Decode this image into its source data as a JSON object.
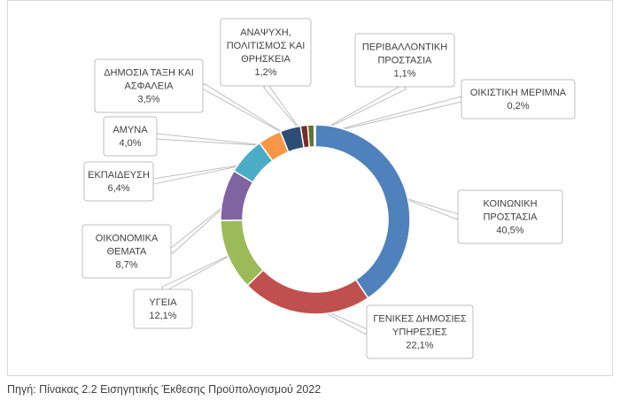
{
  "chart_data": {
    "type": "doughnut",
    "title": "",
    "legend": "none",
    "slices": [
      {
        "name": "ΚΟΙΝΩΝΙΚΗ ΠΡΟΣΤΑΣΙΑ",
        "lines": [
          "ΚΟΙΝΩΝΙΚΗ",
          "ΠΡΟΣΤΑΣΙΑ"
        ],
        "value": 40.5,
        "label": "40,5%",
        "color": "#4F81BD"
      },
      {
        "name": "ΓΕΝΙΚΕΣ ΔΗΜΟΣΙΕΣ ΥΠΗΡΕΣΙΕΣ",
        "lines": [
          "ΓΕΝΙΚΕΣ ΔΗΜΟΣΙΕΣ",
          "ΥΠΗΡΕΣΙΕΣ"
        ],
        "value": 22.1,
        "label": "22,1%",
        "color": "#C0504D"
      },
      {
        "name": "ΥΓΕΙΑ",
        "lines": [
          "ΥΓΕΙΑ"
        ],
        "value": 12.1,
        "label": "12,1%",
        "color": "#9BBB59"
      },
      {
        "name": "ΟΙΚΟΝΟΜΙΚΑ ΘΕΜΑΤΑ",
        "lines": [
          "ΟΙΚΟΝΟΜΙΚΑ",
          "ΘΕΜΑΤΑ"
        ],
        "value": 8.7,
        "label": "8,7%",
        "color": "#8064A2"
      },
      {
        "name": "ΕΚΠΑΙΔΕΥΣΗ",
        "lines": [
          "ΕΚΠΑΙΔΕΥΣΗ"
        ],
        "value": 6.4,
        "label": "6,4%",
        "color": "#4BACC6"
      },
      {
        "name": "ΑΜΥΝΑ",
        "lines": [
          "ΑΜΥΝΑ"
        ],
        "value": 4.0,
        "label": "4,0%",
        "color": "#F79646"
      },
      {
        "name": "ΔΗΜΟΣΙΑ ΤΑΞΗ ΚΑΙ ΑΣΦΑΛΕΙΑ",
        "lines": [
          "ΔΗΜΟΣΙΑ ΤΑΞΗ ΚΑΙ",
          "ΑΣΦΑΛΕΙΑ"
        ],
        "value": 3.5,
        "label": "3,5%",
        "color": "#2C4D75"
      },
      {
        "name": "ΑΝΑΨΥΧΗ, ΠΟΛΙΤΙΣΜΟΣ ΚΑΙ ΘΡΗΣΚΕΙΑ",
        "lines": [
          "ΑΝΑΨΥΧΗ,",
          "ΠΟΛΙΤΙΣΜΟΣ ΚΑΙ",
          "ΘΡΗΣΚΕΙΑ"
        ],
        "value": 1.2,
        "label": "1,2%",
        "color": "#772C2A"
      },
      {
        "name": "ΠΕΡΙΒΑΛΛΟΝΤΙΚΗ ΠΡΟΣΤΑΣΙΑ",
        "lines": [
          "ΠΕΡΙΒΑΛΛΟΝΤΙΚΗ",
          "ΠΡΟΣΤΑΣΙΑ"
        ],
        "value": 1.1,
        "label": "1,1%",
        "color": "#5F7530"
      },
      {
        "name": "ΟΙΚΙΣΤΙΚΗ ΜΕΡΙΜΝΑ",
        "lines": [
          "ΟΙΚΙΣΤΙΚΗ ΜΕΡΙΜΝΑ"
        ],
        "value": 0.2,
        "label": "0,2%",
        "color": "#4D3B62"
      }
    ]
  },
  "source_note": "Πηγή: Πίνακας 2.2 Εισηγητικής Έκθεσης Προϋπολογισμού 2022"
}
